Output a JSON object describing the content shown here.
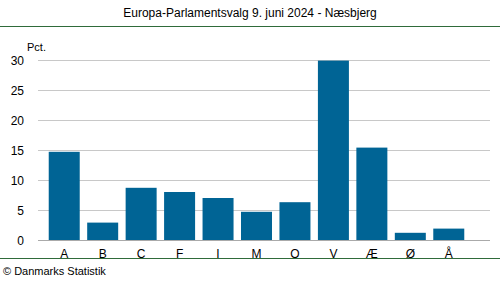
{
  "chart_data": {
    "type": "bar",
    "title": "Europa-Parlamentsvalg 9. juni 2024 - Næsbjerg",
    "y_label": "Pct.",
    "source": "© Danmarks Statistik",
    "categories": [
      "A",
      "B",
      "C",
      "F",
      "I",
      "M",
      "O",
      "V",
      "Æ",
      "Ø",
      "Å"
    ],
    "values": [
      14.7,
      2.9,
      8.7,
      8.0,
      7.0,
      4.7,
      6.3,
      29.9,
      15.4,
      1.2,
      1.9
    ],
    "color": "#006495",
    "ylim": [
      0,
      30
    ],
    "yticks": [
      0,
      5,
      10,
      15,
      20,
      25,
      30
    ],
    "grid": true
  }
}
